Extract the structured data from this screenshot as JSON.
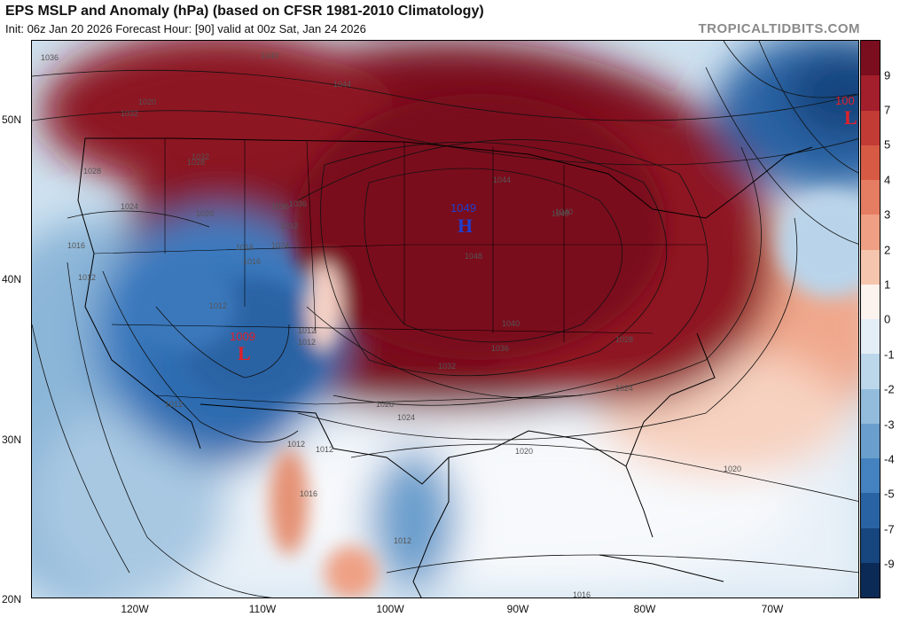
{
  "header": {
    "title": "EPS MSLP and Anomaly (hPa) (based on CFSR 1981-2010 Climatology)",
    "subtitle": "Init: 06z Jan 20 2026   Forecast Hour: [90]   valid at 00z Sat, Jan 24 2026",
    "brand": "TROPICALTIDBITS.COM"
  },
  "axes": {
    "lat_labels": [
      "50N",
      "40N",
      "30N",
      "20N"
    ],
    "lon_labels": [
      "120W",
      "110W",
      "100W",
      "90W",
      "80W",
      "70W"
    ]
  },
  "colorbar": {
    "labels": [
      "9",
      "7",
      "5",
      "4",
      "3",
      "2",
      "1",
      "0",
      "-1",
      "-2",
      "-3",
      "-4",
      "-5",
      "-7",
      "-9"
    ],
    "colors": [
      "#7a0d1e",
      "#a31f2c",
      "#c23b35",
      "#d75a45",
      "#e57d62",
      "#efa084",
      "#f6c5ad",
      "#fdf3ee",
      "#e4eef6",
      "#bcd6ea",
      "#93bcdc",
      "#6a9fcd",
      "#4483bf",
      "#2a63a4",
      "#17457e",
      "#0b2a55"
    ]
  },
  "pressure_centers": {
    "high_center": {
      "value": "1049",
      "letter": "H"
    },
    "low_west": {
      "value": "1009",
      "letter": "L"
    },
    "low_east": {
      "value": "100",
      "letter": "L"
    }
  },
  "isobar_labels": [
    "1036",
    "1028",
    "1032",
    "1040",
    "1044",
    "1044",
    "1048",
    "1040",
    "1036",
    "1032",
    "1028",
    "1024",
    "1020",
    "1024",
    "1028",
    "1032",
    "1036",
    "1040",
    "1024",
    "1016",
    "1012",
    "1020",
    "1016",
    "1012",
    "1012",
    "1012",
    "1012",
    "1012",
    "1016",
    "1012",
    "1012",
    "1016",
    "1020",
    "1020",
    "1016",
    "1024",
    "1028",
    "1032",
    "1036",
    "1040"
  ],
  "colors": {
    "accent_high": "#1f3fd0",
    "accent_low": "#e0202a"
  }
}
